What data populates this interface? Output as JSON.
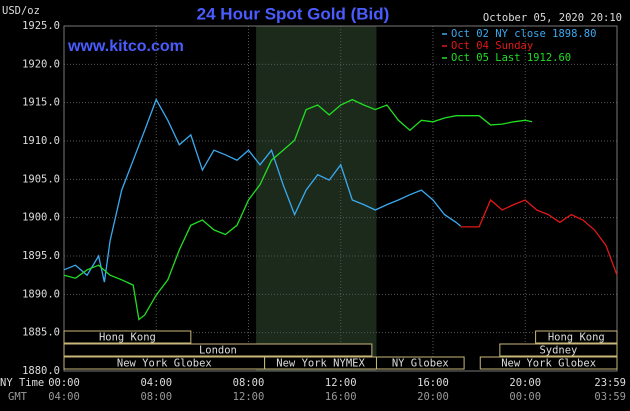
{
  "chart_data": {
    "type": "line",
    "title": "24 Hour Spot Gold (Bid)",
    "watermark": "www.kitco.com",
    "ylabel": "USD/oz",
    "timestamp": "October 05, 2020 20:10",
    "xlabel": "NY Time",
    "x2label": "GMT",
    "xlim": [
      0,
      23.98
    ],
    "ylim": [
      1880,
      1925
    ],
    "xticks": [
      {
        "value": 0,
        "label": "00:00"
      },
      {
        "value": 4,
        "label": "04:00"
      },
      {
        "value": 8,
        "label": "08:00"
      },
      {
        "value": 12,
        "label": "12:00"
      },
      {
        "value": 16,
        "label": "16:00"
      },
      {
        "value": 20,
        "label": "20:00"
      },
      {
        "value": 23.98,
        "label": "23:59"
      }
    ],
    "x2ticklabels": [
      "04:00",
      "08:00",
      "12:00",
      "16:00",
      "20:00",
      "00:00",
      "03:59"
    ],
    "yticks": [
      {
        "value": 1925,
        "label": "1925.0"
      },
      {
        "value": 1920,
        "label": "1920.0"
      },
      {
        "value": 1915,
        "label": "1915.0"
      },
      {
        "value": 1910,
        "label": "1910.0"
      },
      {
        "value": 1905,
        "label": "1905.0"
      },
      {
        "value": 1900,
        "label": "1900.0"
      },
      {
        "value": 1895,
        "label": "1895.0"
      },
      {
        "value": 1890,
        "label": "1890.0"
      },
      {
        "value": 1885,
        "label": "1885.0"
      },
      {
        "value": 1880,
        "label": "1880.0"
      }
    ],
    "grid": true,
    "highlight_x": [
      8.33,
      13.55
    ],
    "legend": "top-right",
    "series": [
      {
        "name": "Oct 02 NY close 1898.80",
        "color": "#3aaaf0",
        "x": [
          0,
          0.5,
          1,
          1.5,
          1.75,
          2,
          2.5,
          3,
          3.5,
          4,
          4.5,
          5,
          5.5,
          6,
          6.5,
          7,
          7.5,
          8,
          8.5,
          9,
          9.5,
          10,
          10.5,
          11,
          11.5,
          12,
          12.5,
          13,
          13.5,
          14,
          14.5,
          15,
          15.5,
          16,
          16.5,
          17,
          17.2
        ],
        "values": [
          1893.2,
          1893.8,
          1892.5,
          1895,
          1891.6,
          1897,
          1903.6,
          1907.5,
          1911.4,
          1915.4,
          1912.7,
          1909.5,
          1910.8,
          1906.2,
          1908.8,
          1908.2,
          1907.5,
          1908.8,
          1906.9,
          1908.8,
          1904.3,
          1900.4,
          1903.6,
          1905.6,
          1904.9,
          1906.9,
          1902.3,
          1901.7,
          1901,
          1901.7,
          1902.3,
          1903,
          1903.6,
          1902.3,
          1900.4,
          1899.4,
          1898.9
        ]
      },
      {
        "name": "Oct 04 Sunday",
        "color": "#e01818",
        "x": [
          17.2,
          18,
          18.5,
          19,
          19.5,
          20,
          20.5,
          21,
          21.5,
          22,
          22.5,
          23,
          23.5,
          23.98
        ],
        "values": [
          1898.8,
          1898.8,
          1902.3,
          1901,
          1901.7,
          1902.3,
          1901,
          1900.4,
          1899.4,
          1900.4,
          1899.7,
          1898.4,
          1896.4,
          1892.5
        ]
      },
      {
        "name": "Oct 05 Last 1912.60",
        "color": "#22dd22",
        "x": [
          0,
          0.5,
          1,
          1.5,
          2,
          2.5,
          3,
          3.25,
          3.5,
          4,
          4.5,
          5,
          5.5,
          6,
          6.5,
          7,
          7.5,
          8,
          8.5,
          9,
          9.5,
          10,
          10.5,
          11,
          11.5,
          12,
          12.5,
          13,
          13.5,
          14,
          14.5,
          15,
          15.5,
          16,
          16.5,
          17,
          17.5,
          18,
          18.5,
          19,
          19.5,
          20,
          20.3
        ],
        "values": [
          1892.5,
          1892.1,
          1893.2,
          1893.8,
          1892.5,
          1891.9,
          1891.2,
          1886.7,
          1887.3,
          1889.9,
          1891.9,
          1895.8,
          1899,
          1899.7,
          1898.4,
          1897.8,
          1899,
          1902.3,
          1904.3,
          1907.5,
          1908.8,
          1910.1,
          1914.1,
          1914.7,
          1913.4,
          1914.7,
          1915.4,
          1914.7,
          1914.1,
          1914.7,
          1912.7,
          1911.4,
          1912.7,
          1912.5,
          1913,
          1913.3,
          1913.3,
          1913.3,
          1912.1,
          1912.2,
          1912.5,
          1912.7,
          1912.5
        ]
      }
    ],
    "sessions": [
      [
        {
          "label": "Hong Kong",
          "start": 0,
          "end": 5.5
        },
        {
          "label": "Hong Kong",
          "start": 20.45,
          "end": 23.98
        }
      ],
      [
        {
          "label": "London",
          "start": 0,
          "end": 13.35
        },
        {
          "label": "Sydney",
          "start": 18.9,
          "end": 23.98
        }
      ],
      [
        {
          "label": "New York Globex",
          "start": 0,
          "end": 8.7
        },
        {
          "label": "New York NYMEX",
          "start": 8.7,
          "end": 13.55
        },
        {
          "label": "NY Globex",
          "start": 13.55,
          "end": 17.35
        },
        {
          "label": "New York Globex",
          "start": 18.05,
          "end": 23.98
        }
      ]
    ]
  }
}
